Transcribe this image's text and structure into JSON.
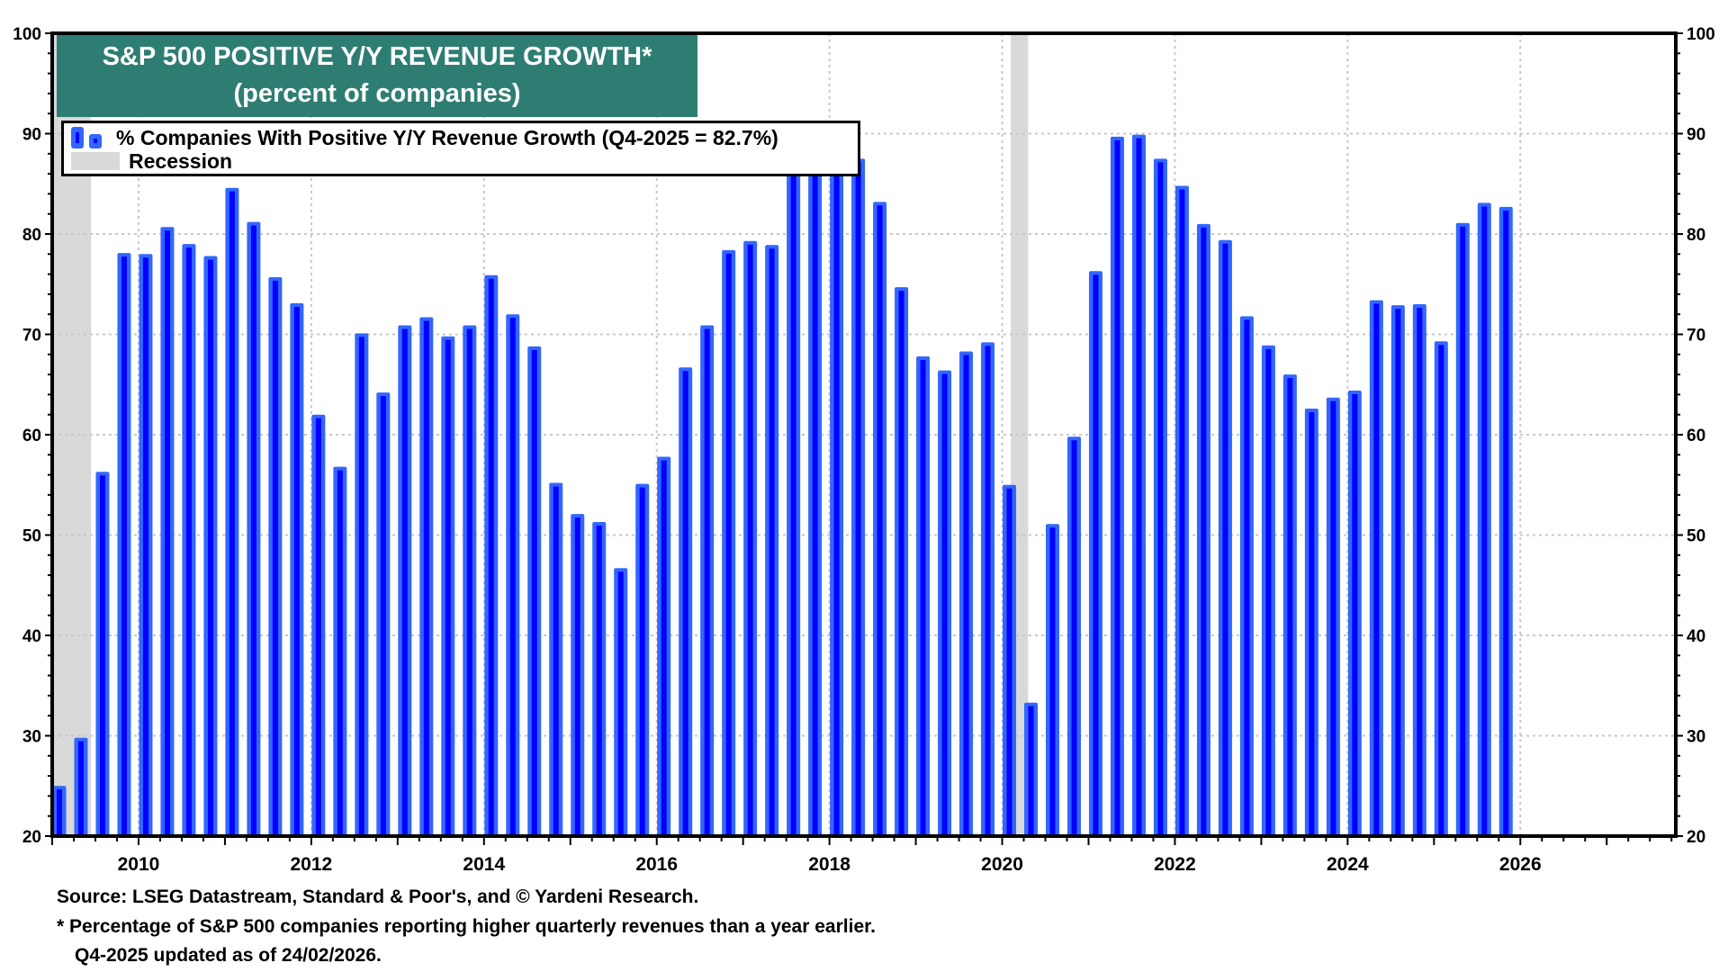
{
  "chart_data": {
    "type": "bar",
    "title": "S&P 500 POSITIVE Y/Y REVENUE GROWTH*",
    "subtitle": "(percent of companies)",
    "xlabel": "",
    "ylabel": "",
    "ylim": [
      20,
      100
    ],
    "xlim": [
      2009.0,
      2027.8
    ],
    "y_ticks": [
      20,
      30,
      40,
      50,
      60,
      70,
      80,
      90,
      100
    ],
    "x_ticks": [
      "2010",
      "2012",
      "2014",
      "2016",
      "2018",
      "2020",
      "2022",
      "2024",
      "2026"
    ],
    "grid": true,
    "legend_position": "top-left",
    "legend": [
      {
        "name": "% Companies With Positive Y/Y Revenue Growth (Q4-2025 = 82.7%)",
        "type": "bar",
        "color": "#3366ff"
      },
      {
        "name": "Recession",
        "type": "band",
        "color": "#d9d9d9"
      }
    ],
    "recessions": [
      {
        "start": 2009.0,
        "end": 2009.45
      },
      {
        "start": 2020.1,
        "end": 2020.3
      }
    ],
    "categories": [
      "Q1-2009",
      "Q2-2009",
      "Q3-2009",
      "Q4-2009",
      "Q1-2010",
      "Q2-2010",
      "Q3-2010",
      "Q4-2010",
      "Q1-2011",
      "Q2-2011",
      "Q3-2011",
      "Q4-2011",
      "Q1-2012",
      "Q2-2012",
      "Q3-2012",
      "Q4-2012",
      "Q1-2013",
      "Q2-2013",
      "Q3-2013",
      "Q4-2013",
      "Q1-2014",
      "Q2-2014",
      "Q3-2014",
      "Q4-2014",
      "Q1-2015",
      "Q2-2015",
      "Q3-2015",
      "Q4-2015",
      "Q1-2016",
      "Q2-2016",
      "Q3-2016",
      "Q4-2016",
      "Q1-2017",
      "Q2-2017",
      "Q3-2017",
      "Q4-2017",
      "Q1-2018",
      "Q2-2018",
      "Q3-2018",
      "Q4-2018",
      "Q1-2019",
      "Q2-2019",
      "Q3-2019",
      "Q4-2019",
      "Q1-2020",
      "Q2-2020",
      "Q3-2020",
      "Q4-2020",
      "Q1-2021",
      "Q2-2021",
      "Q3-2021",
      "Q4-2021",
      "Q1-2022",
      "Q2-2022",
      "Q3-2022",
      "Q4-2022",
      "Q1-2023",
      "Q2-2023",
      "Q3-2023",
      "Q4-2023",
      "Q1-2024",
      "Q2-2024",
      "Q3-2024",
      "Q4-2024",
      "Q1-2025",
      "Q2-2025",
      "Q3-2025",
      "Q4-2025"
    ],
    "series": [
      {
        "name": "% Companies With Positive Y/Y Revenue Growth",
        "color": "#3366ff",
        "inner_color": "#0000ff",
        "values": [
          25.0,
          29.8,
          56.3,
          78.1,
          78.0,
          80.7,
          79.0,
          77.8,
          84.6,
          81.2,
          75.7,
          73.1,
          62.0,
          56.8,
          70.1,
          64.2,
          70.9,
          71.7,
          69.8,
          70.9,
          75.9,
          72.0,
          68.8,
          55.2,
          52.1,
          51.3,
          46.7,
          55.1,
          57.8,
          66.7,
          70.9,
          78.4,
          79.3,
          78.9,
          86.5,
          88.0,
          88.5,
          87.5,
          83.2,
          74.7,
          67.8,
          66.4,
          68.3,
          69.2,
          55.0,
          33.3,
          51.1,
          59.8,
          76.3,
          89.7,
          89.9,
          87.5,
          84.8,
          81.0,
          79.4,
          71.8,
          68.9,
          66.0,
          62.6,
          63.7,
          64.4,
          73.4,
          72.9,
          73.0,
          69.3,
          81.1,
          83.1,
          82.7
        ]
      }
    ],
    "first_bar_position": 2009.125,
    "bar_step_years": 0.25
  },
  "footer": {
    "source": "Source: LSEG Datastream, Standard & Poor's, and © Yardeni Research.",
    "note": "* Percentage of S&P 500 companies reporting higher quarterly revenues than a year earlier.",
    "updated": "Q4-2025 updated as of 24/02/2026."
  }
}
